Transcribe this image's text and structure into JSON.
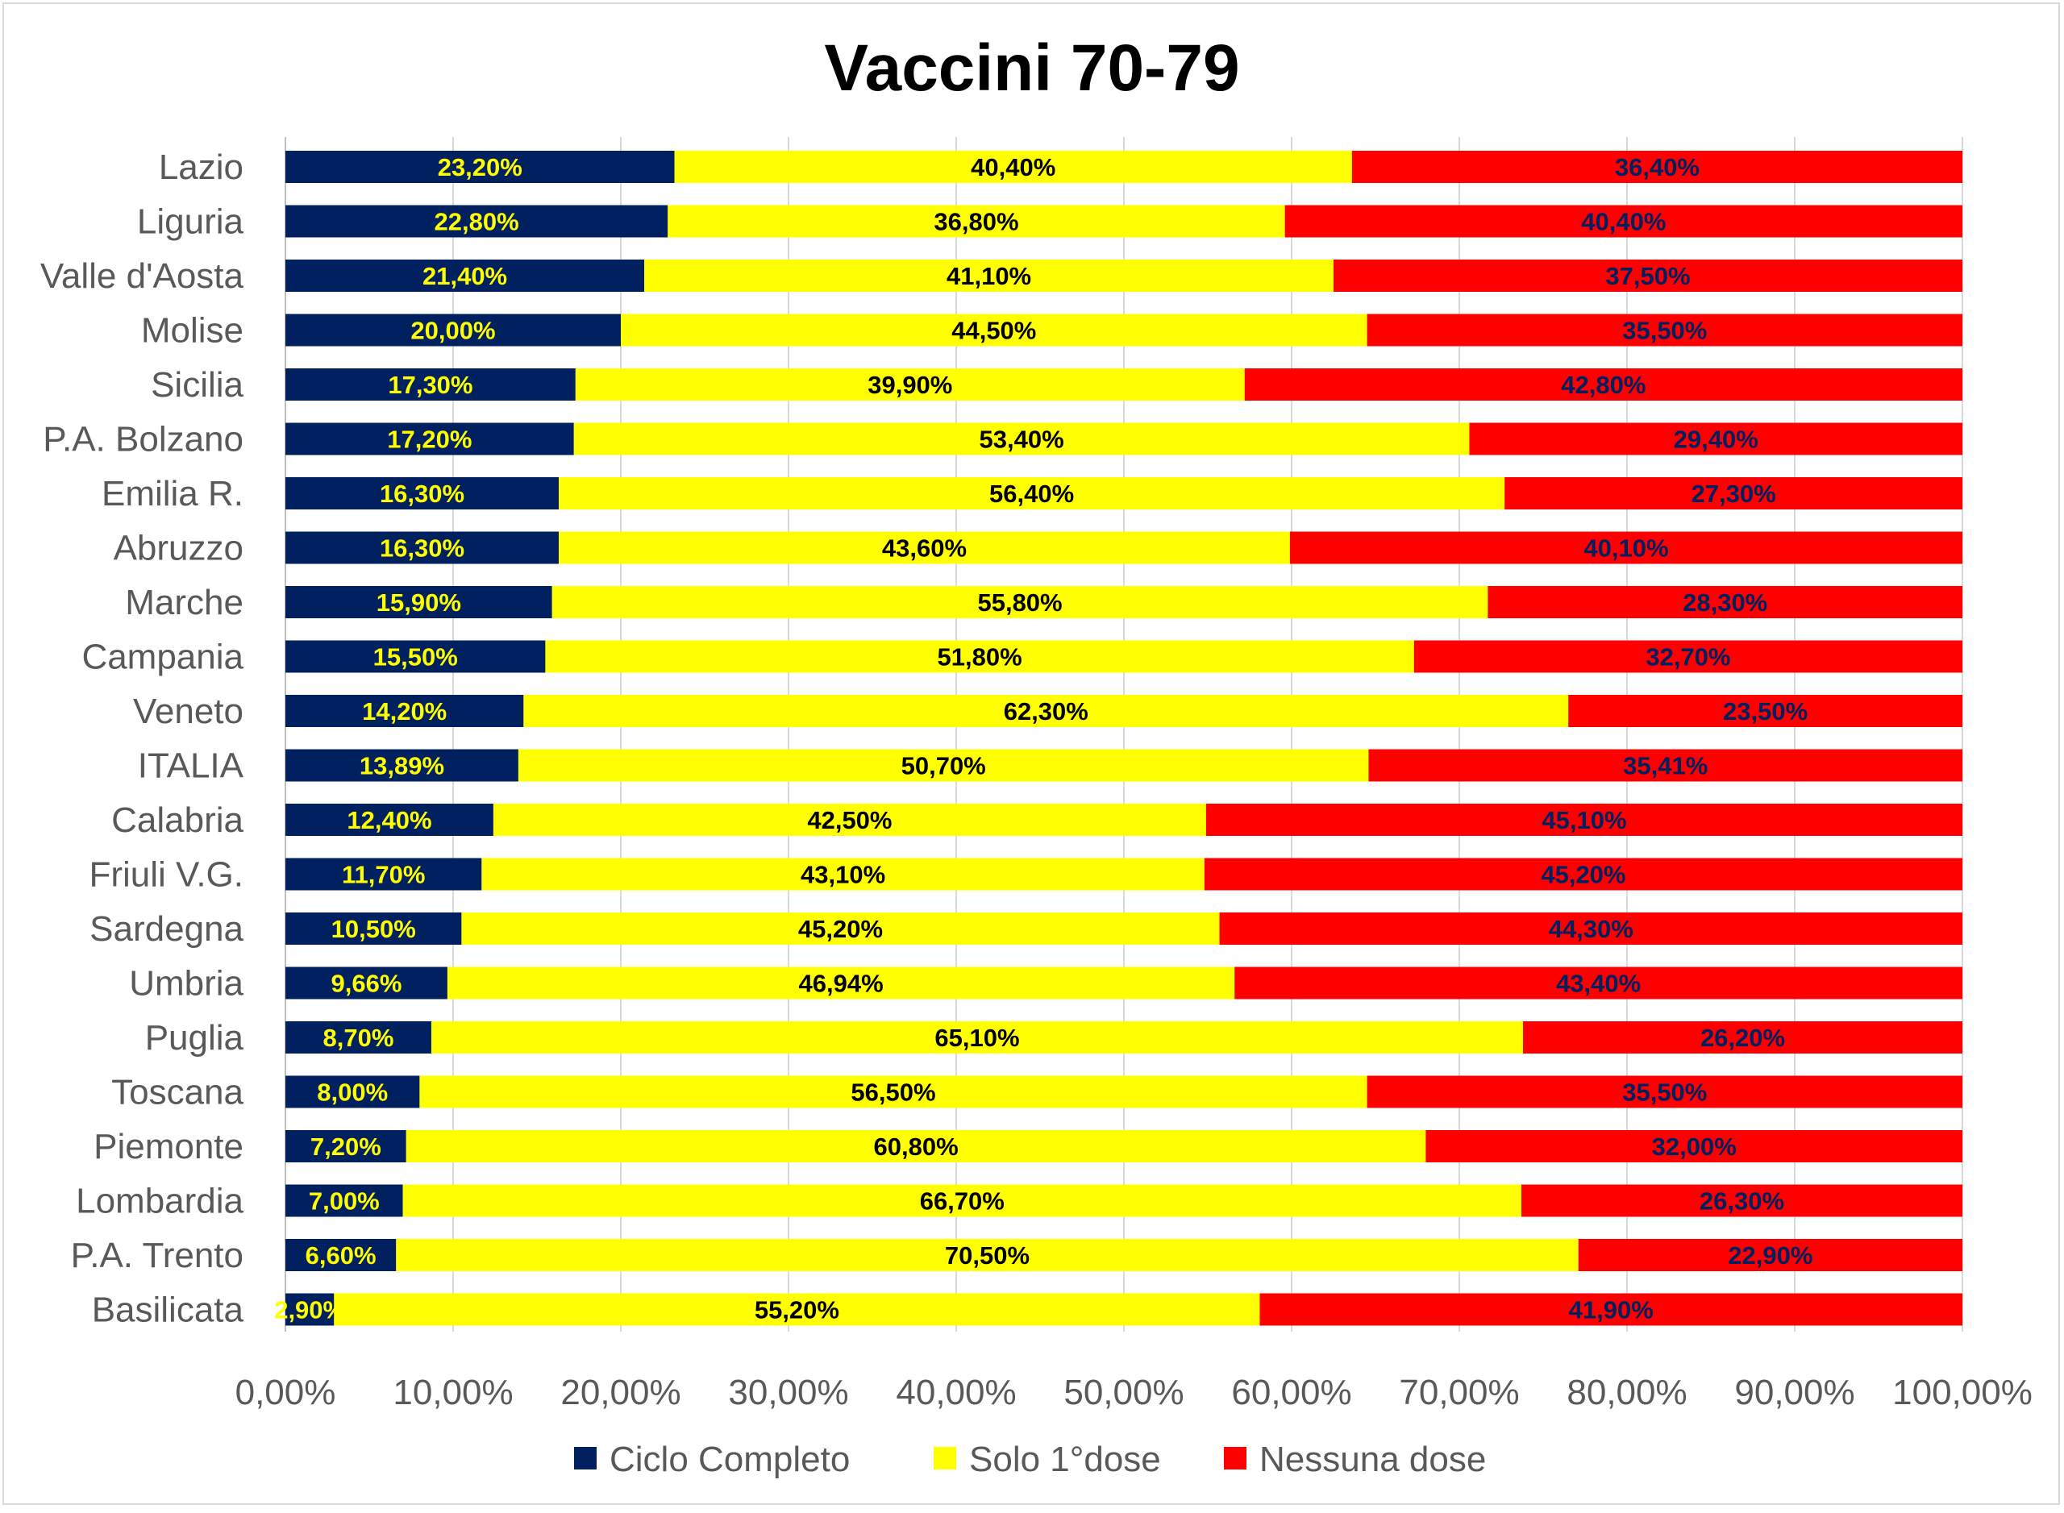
{
  "chart_data": {
    "type": "bar",
    "orientation": "horizontal",
    "stacked": true,
    "title": "Vaccini 70-79",
    "xlabel": "",
    "ylabel": "",
    "xlim": [
      0,
      100
    ],
    "x_ticks": [
      "0,00%",
      "10,00%",
      "20,00%",
      "30,00%",
      "40,00%",
      "50,00%",
      "60,00%",
      "70,00%",
      "80,00%",
      "90,00%",
      "100,00%"
    ],
    "grid": "vertical",
    "legend_position": "bottom",
    "categories": [
      "Lazio",
      "Liguria",
      "Valle d'Aosta",
      "Molise",
      "Sicilia",
      "P.A. Bolzano",
      "Emilia R.",
      "Abruzzo",
      "Marche",
      "Campania",
      "Veneto",
      "ITALIA",
      "Calabria",
      "Friuli V.G.",
      "Sardegna",
      "Umbria",
      "Puglia",
      "Toscana",
      "Piemonte",
      "Lombardia",
      "P.A. Trento",
      "Basilicata"
    ],
    "series": [
      {
        "name": "Ciclo Completo",
        "color": "#002060",
        "label_color": "#ffff00",
        "values": [
          23.2,
          22.8,
          21.4,
          20.0,
          17.3,
          17.2,
          16.3,
          16.3,
          15.9,
          15.5,
          14.2,
          13.89,
          12.4,
          11.7,
          10.5,
          9.66,
          8.7,
          8.0,
          7.2,
          7.0,
          6.6,
          2.9
        ],
        "labels": [
          "23,20%",
          "22,80%",
          "21,40%",
          "20,00%",
          "17,30%",
          "17,20%",
          "16,30%",
          "16,30%",
          "15,90%",
          "15,50%",
          "14,20%",
          "13,89%",
          "12,40%",
          "11,70%",
          "10,50%",
          "9,66%",
          "8,70%",
          "8,00%",
          "7,20%",
          "7,00%",
          "6,60%",
          "2,90%"
        ]
      },
      {
        "name": "Solo 1°dose",
        "color": "#ffff00",
        "label_color": "#000000",
        "values": [
          40.4,
          36.8,
          41.1,
          44.5,
          39.9,
          53.4,
          56.4,
          43.6,
          55.8,
          51.8,
          62.3,
          50.7,
          42.5,
          43.1,
          45.2,
          46.94,
          65.1,
          56.5,
          60.8,
          66.7,
          70.5,
          55.2
        ],
        "labels": [
          "40,40%",
          "36,80%",
          "41,10%",
          "44,50%",
          "39,90%",
          "53,40%",
          "56,40%",
          "43,60%",
          "55,80%",
          "51,80%",
          "62,30%",
          "50,70%",
          "42,50%",
          "43,10%",
          "45,20%",
          "46,94%",
          "65,10%",
          "56,50%",
          "60,80%",
          "66,70%",
          "70,50%",
          "55,20%"
        ]
      },
      {
        "name": "Nessuna dose",
        "color": "#ff0000",
        "label_color": "#002060",
        "values": [
          36.4,
          40.4,
          37.5,
          35.5,
          42.8,
          29.4,
          27.3,
          40.1,
          28.3,
          32.7,
          23.5,
          35.41,
          45.1,
          45.2,
          44.3,
          43.4,
          26.2,
          35.5,
          32.0,
          26.3,
          22.9,
          41.9
        ],
        "labels": [
          "36,40%",
          "40,40%",
          "37,50%",
          "35,50%",
          "42,80%",
          "29,40%",
          "27,30%",
          "40,10%",
          "28,30%",
          "32,70%",
          "23,50%",
          "35,41%",
          "45,10%",
          "45,20%",
          "44,30%",
          "43,40%",
          "26,20%",
          "35,50%",
          "32,00%",
          "26,30%",
          "22,90%",
          "41,90%"
        ]
      }
    ]
  }
}
